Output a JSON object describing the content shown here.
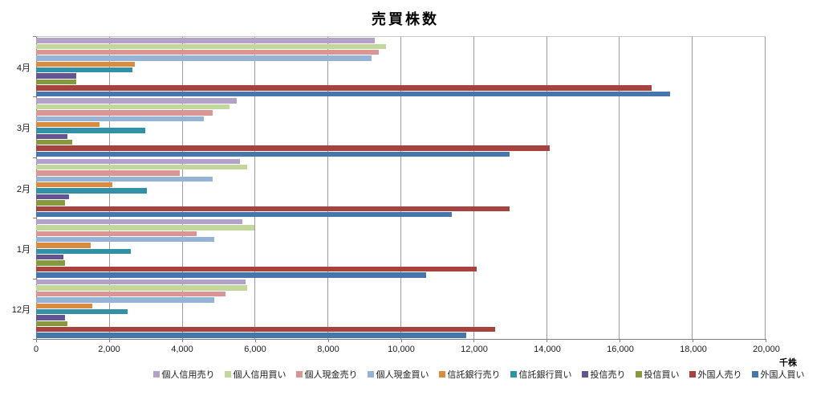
{
  "chart_title": "売買株数",
  "x_axis_unit": "千株",
  "chart_data": {
    "type": "bar",
    "orientation": "horizontal",
    "title": "売買株数",
    "xlabel": "千株",
    "ylabel": "",
    "xlim": [
      0,
      20000
    ],
    "x_tick_step": 2000,
    "x_tick_labels": [
      "0",
      "2,000",
      "4,000",
      "6,000",
      "8,000",
      "10,000",
      "12,000",
      "14,000",
      "16,000",
      "18,000",
      "20,000"
    ],
    "grid": true,
    "legend_position": "bottom",
    "categories": [
      "4月",
      "3月",
      "2月",
      "1月",
      "12月"
    ],
    "series": [
      {
        "name": "個人信用売り",
        "color": "#b2a2c7",
        "values": [
          9300,
          5500,
          5600,
          5650,
          5750
        ]
      },
      {
        "name": "個人信用買い",
        "color": "#c3d69b",
        "values": [
          9600,
          5300,
          5800,
          6000,
          5800
        ]
      },
      {
        "name": "個人現金売り",
        "color": "#d99694",
        "values": [
          9400,
          4850,
          3950,
          4400,
          5200
        ]
      },
      {
        "name": "個人現金買い",
        "color": "#95b3d7",
        "values": [
          9200,
          4600,
          4850,
          4900,
          4900
        ]
      },
      {
        "name": "信託銀行売り",
        "color": "#d98c3f",
        "values": [
          2700,
          1750,
          2100,
          1500,
          1550
        ]
      },
      {
        "name": "信託銀行買い",
        "color": "#3391a7",
        "values": [
          2650,
          3000,
          3050,
          2600,
          2500
        ]
      },
      {
        "name": "投信売り",
        "color": "#645592",
        "values": [
          1100,
          850,
          900,
          750,
          800
        ]
      },
      {
        "name": "投信買い",
        "color": "#87993f",
        "values": [
          1100,
          1000,
          800,
          800,
          850
        ]
      },
      {
        "name": "外国人売り",
        "color": "#a8423f",
        "values": [
          16900,
          14100,
          13000,
          12100,
          12600
        ]
      },
      {
        "name": "外国人買い",
        "color": "#4576ac",
        "values": [
          17400,
          13000,
          11400,
          10700,
          11800
        ]
      }
    ],
    "colors": {
      "gridline": "#9b9b9b",
      "axis_line": "#7f7f7f",
      "plot_border": "#c9c9c9",
      "text": "#1a1a1a"
    }
  }
}
